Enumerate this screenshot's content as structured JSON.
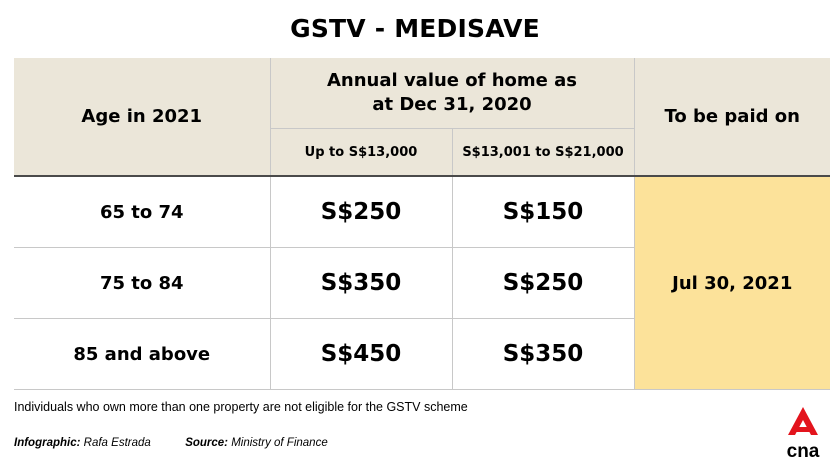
{
  "title": "GSTV - MEDISAVE",
  "table": {
    "col_age": "Age in 2021",
    "col_value_line1": "Annual value of home as",
    "col_value_line2": "at Dec 31, 2020",
    "col_paid": "To be paid on",
    "sub_low": "Up to S$13,000",
    "sub_high": "S$13,001 to S$21,000",
    "rows": [
      {
        "age": "65 to 74",
        "low": "S$250",
        "high": "S$150"
      },
      {
        "age": "75 to 84",
        "low": "S$350",
        "high": "S$250"
      },
      {
        "age": "85 and above",
        "low": "S$450",
        "high": "S$350"
      }
    ],
    "paid_on": "Jul 30, 2021"
  },
  "note": "Individuals who own more than one property are not eligible for the GSTV scheme",
  "credits": {
    "infographic_label": "Infographic:",
    "infographic_value": "Rafa Estrada",
    "source_label": "Source:",
    "source_value": "Ministry of Finance"
  },
  "logo": {
    "text": "cna",
    "color": "#e3141d"
  },
  "colors": {
    "header_bg": "#ebe6d9",
    "highlight_bg": "#fce29a"
  }
}
